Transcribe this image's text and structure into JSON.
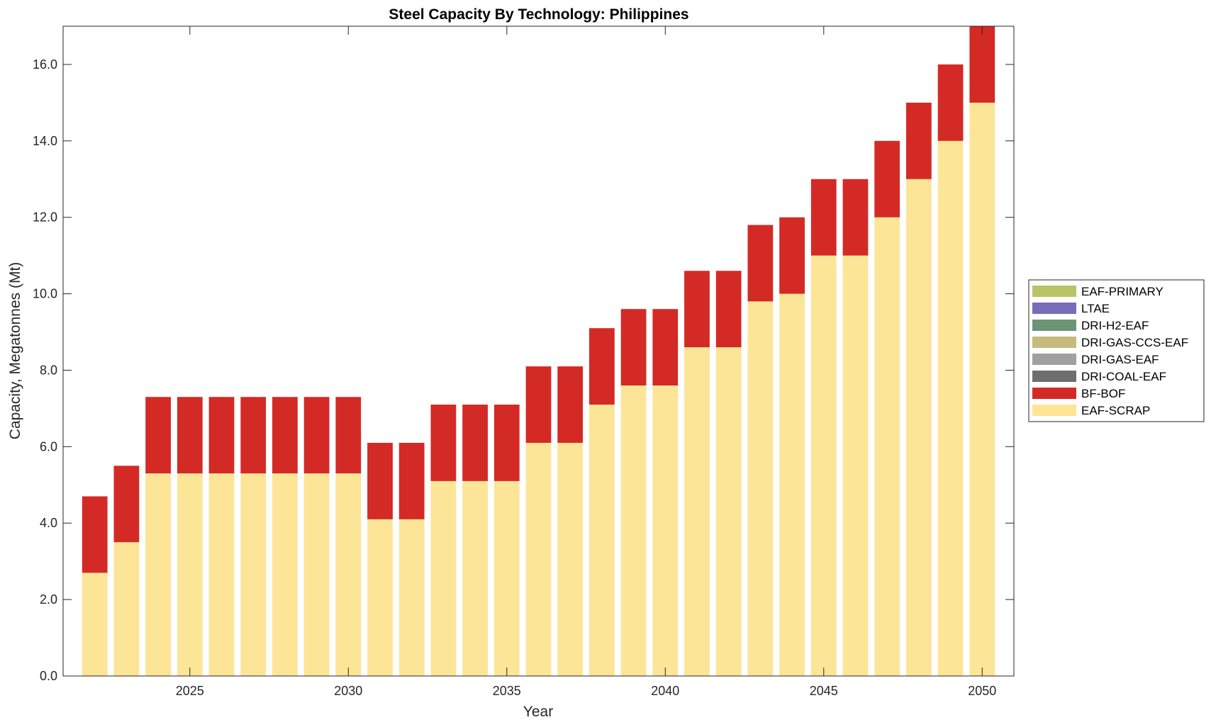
{
  "chart_data": {
    "type": "bar",
    "stacked": true,
    "title": "Steel Capacity By Technology: Philippines",
    "xlabel": "Year",
    "ylabel": "Capacity, Megatonnes (Mt)",
    "categories": [
      2022,
      2023,
      2024,
      2025,
      2026,
      2027,
      2028,
      2029,
      2030,
      2031,
      2032,
      2033,
      2034,
      2035,
      2036,
      2037,
      2038,
      2039,
      2040,
      2041,
      2042,
      2043,
      2044,
      2045,
      2046,
      2047,
      2048,
      2049,
      2050
    ],
    "xlim": [
      2021.0,
      2051.0
    ],
    "xticks": [
      2025,
      2030,
      2035,
      2040,
      2045,
      2050
    ],
    "xtick_labels": [
      "2025",
      "2030",
      "2035",
      "2040",
      "2045",
      "2050"
    ],
    "ylim": [
      0,
      17
    ],
    "yticks": [
      0,
      2,
      4,
      6,
      8,
      10,
      12,
      14,
      16
    ],
    "ytick_labels": [
      "0.0",
      "2.0",
      "4.0",
      "6.0",
      "8.0",
      "10.0",
      "12.0",
      "14.0",
      "16.0"
    ],
    "grid": false,
    "legend_position": "outside-right",
    "series": [
      {
        "name": "EAF-SCRAP",
        "color": "#fde597",
        "values": [
          2.7,
          3.5,
          5.3,
          5.3,
          5.3,
          5.3,
          5.3,
          5.3,
          5.3,
          4.1,
          4.1,
          5.1,
          5.1,
          5.1,
          6.1,
          6.1,
          7.1,
          7.6,
          7.6,
          8.6,
          8.6,
          9.8,
          10.0,
          11.0,
          11.0,
          12.0,
          13.0,
          14.0,
          15.0
        ]
      },
      {
        "name": "BF-BOF",
        "color": "#d42a25",
        "values": [
          2.0,
          2.0,
          2.0,
          2.0,
          2.0,
          2.0,
          2.0,
          2.0,
          2.0,
          2.0,
          2.0,
          2.0,
          2.0,
          2.0,
          2.0,
          2.0,
          2.0,
          2.0,
          2.0,
          2.0,
          2.0,
          2.0,
          2.0,
          2.0,
          2.0,
          2.0,
          2.0,
          2.0,
          2.0
        ]
      },
      {
        "name": "DRI-COAL-EAF",
        "color": "#6e6e6e",
        "values": [
          0,
          0,
          0,
          0,
          0,
          0,
          0,
          0,
          0,
          0,
          0,
          0,
          0,
          0,
          0,
          0,
          0,
          0,
          0,
          0,
          0,
          0,
          0,
          0,
          0,
          0,
          0,
          0,
          0
        ]
      },
      {
        "name": "DRI-GAS-EAF",
        "color": "#a0a0a0",
        "values": [
          0,
          0,
          0,
          0,
          0,
          0,
          0,
          0,
          0,
          0,
          0,
          0,
          0,
          0,
          0,
          0,
          0,
          0,
          0,
          0,
          0,
          0,
          0,
          0,
          0,
          0,
          0,
          0,
          0
        ]
      },
      {
        "name": "DRI-GAS-CCS-EAF",
        "color": "#c5bb7c",
        "values": [
          0,
          0,
          0,
          0,
          0,
          0,
          0,
          0,
          0,
          0,
          0,
          0,
          0,
          0,
          0,
          0,
          0,
          0,
          0,
          0,
          0,
          0,
          0,
          0,
          0,
          0,
          0,
          0,
          0
        ]
      },
      {
        "name": "DRI-H2-EAF",
        "color": "#6c9577",
        "values": [
          0,
          0,
          0,
          0,
          0,
          0,
          0,
          0,
          0,
          0,
          0,
          0,
          0,
          0,
          0,
          0,
          0,
          0,
          0,
          0,
          0,
          0,
          0,
          0,
          0,
          0,
          0,
          0,
          0
        ]
      },
      {
        "name": "LTAE",
        "color": "#7a6bbb",
        "values": [
          0,
          0,
          0,
          0,
          0,
          0,
          0,
          0,
          0,
          0,
          0,
          0,
          0,
          0,
          0,
          0,
          0,
          0,
          0,
          0,
          0,
          0,
          0,
          0,
          0,
          0,
          0,
          0,
          0
        ]
      },
      {
        "name": "EAF-PRIMARY",
        "color": "#b9c467",
        "values": [
          0,
          0,
          0,
          0,
          0,
          0,
          0,
          0,
          0,
          0,
          0,
          0,
          0,
          0,
          0,
          0,
          0,
          0,
          0,
          0,
          0,
          0,
          0,
          0,
          0,
          0,
          0,
          0,
          0
        ]
      }
    ],
    "legend_order": [
      "EAF-PRIMARY",
      "LTAE",
      "DRI-H2-EAF",
      "DRI-GAS-CCS-EAF",
      "DRI-GAS-EAF",
      "DRI-COAL-EAF",
      "BF-BOF",
      "EAF-SCRAP"
    ]
  }
}
